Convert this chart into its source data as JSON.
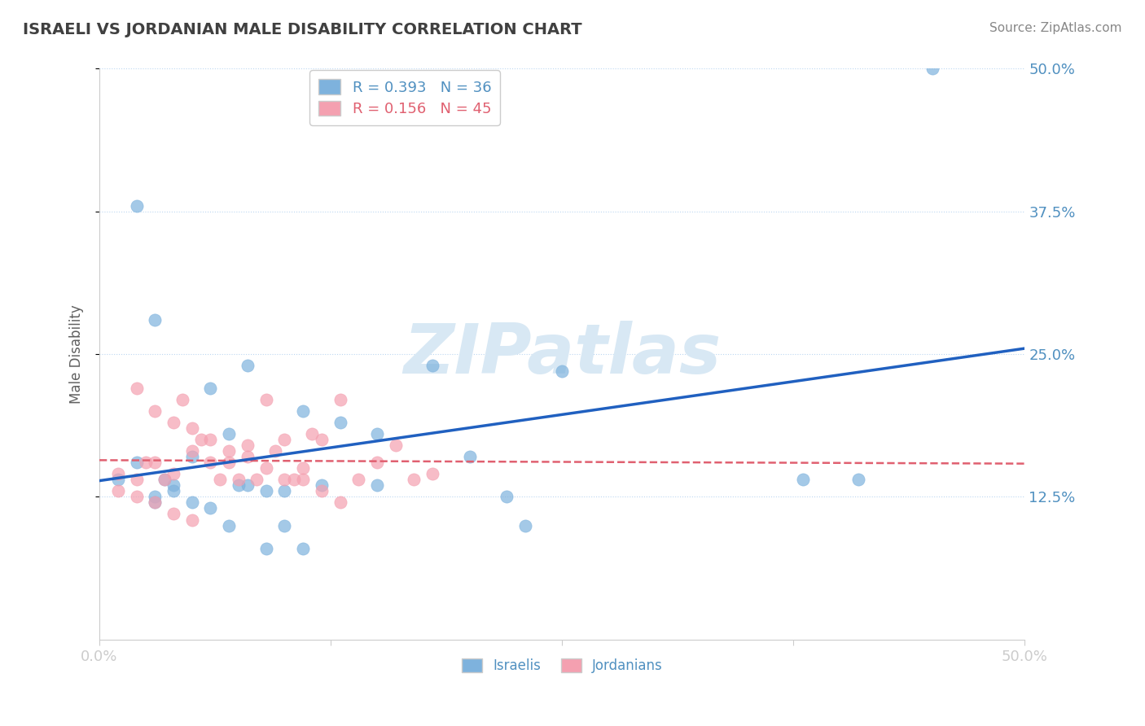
{
  "title": "ISRAELI VS JORDANIAN MALE DISABILITY CORRELATION CHART",
  "source_text": "Source: ZipAtlas.com",
  "ylabel": "Male Disability",
  "xlim": [
    0.0,
    0.5
  ],
  "ylim": [
    0.0,
    0.5
  ],
  "xticks": [
    0.0,
    0.125,
    0.25,
    0.375,
    0.5
  ],
  "xtick_labels": [
    "0.0%",
    "",
    "",
    "",
    "50.0%"
  ],
  "ytick_labels": [
    "12.5%",
    "25.0%",
    "37.5%",
    "50.0%"
  ],
  "yticks": [
    0.125,
    0.25,
    0.375,
    0.5
  ],
  "r_israeli": 0.393,
  "n_israeli": 36,
  "r_jordanian": 0.156,
  "n_jordanian": 45,
  "israeli_color": "#7EB2DD",
  "jordanian_color": "#F4A0B0",
  "israeli_line_color": "#2060C0",
  "jordanian_line_color": "#E06070",
  "title_color": "#404040",
  "axis_label_color": "#5090C0",
  "legend_r_color": "#5090C0",
  "background_color": "#FFFFFF",
  "watermark_color": "#D8E8F4",
  "israelis_x": [
    0.01,
    0.02,
    0.03,
    0.035,
    0.04,
    0.05,
    0.06,
    0.07,
    0.075,
    0.08,
    0.09,
    0.1,
    0.11,
    0.12,
    0.13,
    0.15,
    0.15,
    0.18,
    0.2,
    0.22,
    0.23,
    0.25,
    0.03,
    0.04,
    0.05,
    0.06,
    0.07,
    0.08,
    0.09,
    0.1,
    0.11,
    0.38,
    0.41,
    0.02,
    0.03,
    0.45
  ],
  "israelis_y": [
    0.14,
    0.155,
    0.125,
    0.14,
    0.135,
    0.16,
    0.22,
    0.18,
    0.135,
    0.24,
    0.13,
    0.13,
    0.2,
    0.135,
    0.19,
    0.135,
    0.18,
    0.24,
    0.16,
    0.125,
    0.1,
    0.235,
    0.12,
    0.13,
    0.12,
    0.115,
    0.1,
    0.135,
    0.08,
    0.1,
    0.08,
    0.14,
    0.14,
    0.38,
    0.28,
    0.5
  ],
  "jordanians_x": [
    0.01,
    0.02,
    0.025,
    0.03,
    0.035,
    0.04,
    0.045,
    0.05,
    0.055,
    0.06,
    0.065,
    0.07,
    0.075,
    0.08,
    0.085,
    0.09,
    0.095,
    0.1,
    0.105,
    0.11,
    0.115,
    0.12,
    0.13,
    0.14,
    0.15,
    0.16,
    0.17,
    0.18,
    0.02,
    0.03,
    0.04,
    0.05,
    0.06,
    0.07,
    0.08,
    0.09,
    0.1,
    0.11,
    0.12,
    0.13,
    0.01,
    0.02,
    0.03,
    0.04,
    0.05
  ],
  "jordanians_y": [
    0.145,
    0.14,
    0.155,
    0.155,
    0.14,
    0.145,
    0.21,
    0.165,
    0.175,
    0.155,
    0.14,
    0.155,
    0.14,
    0.17,
    0.14,
    0.21,
    0.165,
    0.175,
    0.14,
    0.15,
    0.18,
    0.175,
    0.21,
    0.14,
    0.155,
    0.17,
    0.14,
    0.145,
    0.22,
    0.2,
    0.19,
    0.185,
    0.175,
    0.165,
    0.16,
    0.15,
    0.14,
    0.14,
    0.13,
    0.12,
    0.13,
    0.125,
    0.12,
    0.11,
    0.105
  ]
}
